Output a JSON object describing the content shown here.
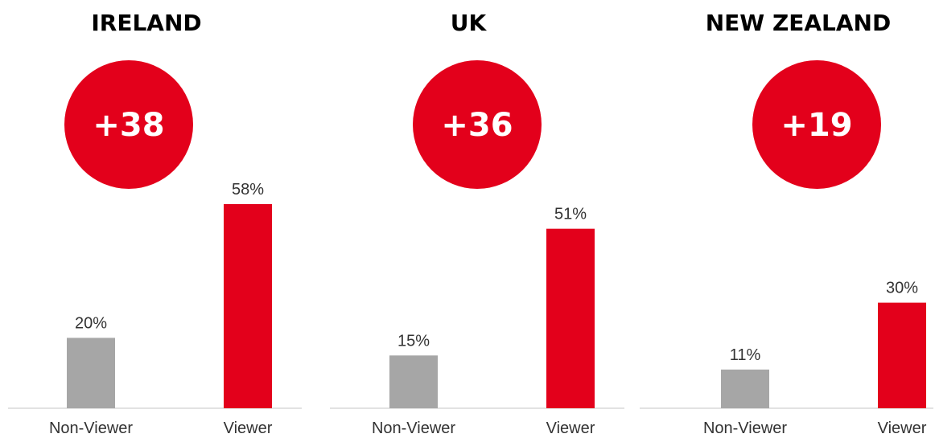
{
  "colors": {
    "non_viewer": "#a6a6a6",
    "viewer": "#e3001b",
    "badge": "#e3001b"
  },
  "chart_data": [
    {
      "type": "bar",
      "title": "IRELAND",
      "badge": "+38",
      "categories": [
        "Non-Viewer",
        "Viewer"
      ],
      "values": [
        20,
        58
      ],
      "value_labels": [
        "20%",
        "58%"
      ],
      "ylim": [
        0,
        58
      ],
      "grid": false,
      "legend": "none"
    },
    {
      "type": "bar",
      "title": "UK",
      "badge": "+36",
      "categories": [
        "Non-Viewer",
        "Viewer"
      ],
      "values": [
        15,
        51
      ],
      "value_labels": [
        "15%",
        "51%"
      ],
      "ylim": [
        0,
        58
      ],
      "grid": false,
      "legend": "none"
    },
    {
      "type": "bar",
      "title": "NEW ZEALAND",
      "badge": "+19",
      "categories": [
        "Non-Viewer",
        "Viewer"
      ],
      "values": [
        11,
        30
      ],
      "value_labels": [
        "11%",
        "30%"
      ],
      "ylim": [
        0,
        58
      ],
      "grid": false,
      "legend": "none"
    }
  ]
}
